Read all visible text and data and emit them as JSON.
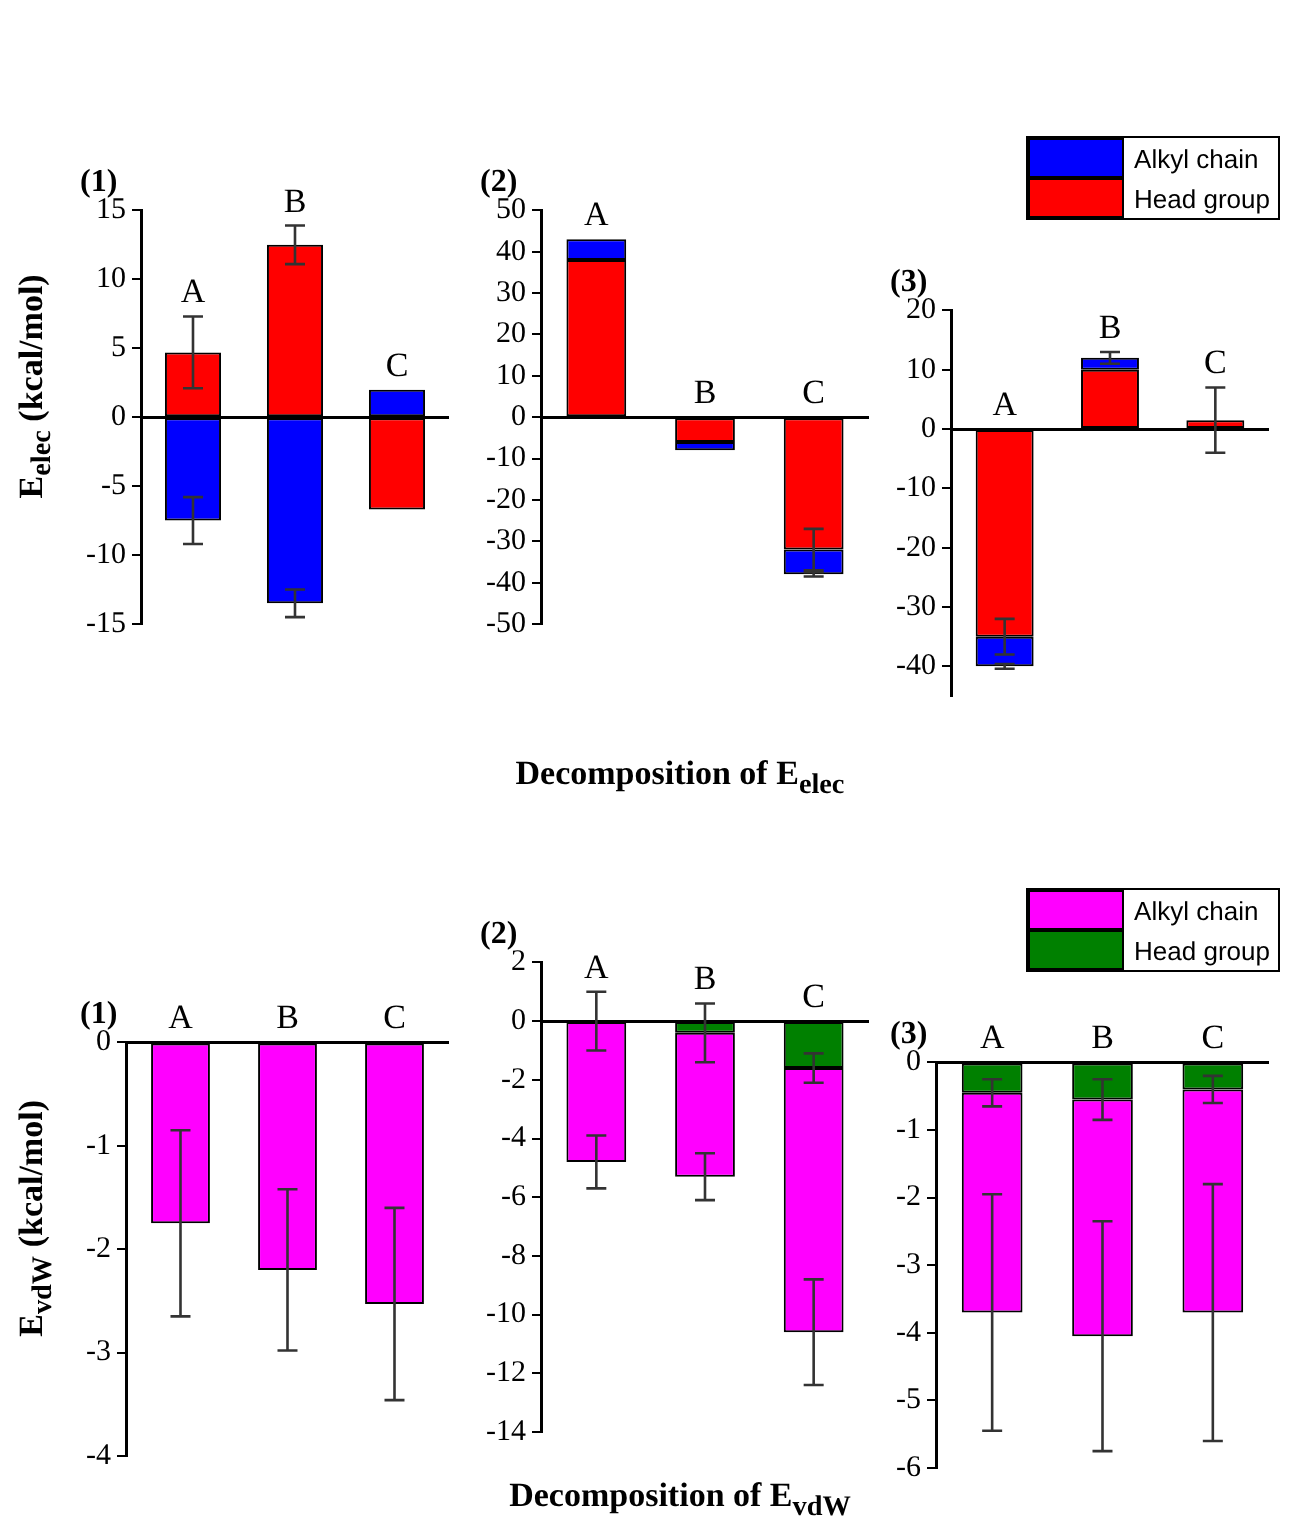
{
  "chart_data": [
    {
      "type": "bar",
      "title": "(1)",
      "ylabel": "E$_{elec}$ (kcal/mol)",
      "categories": [
        "A",
        "B",
        "C"
      ],
      "stacked": true,
      "ylim": [
        -15,
        15
      ],
      "yticks": [
        -15,
        -10,
        -5,
        0,
        5,
        10,
        15
      ],
      "series": [
        {
          "color": "#ff0000",
          "values": [
            4.7,
            12.5,
            -6.7
          ],
          "errors": [
            2.6,
            1.4,
            null
          ]
        },
        {
          "color": "#0000ff",
          "values": [
            -7.5,
            -13.5,
            2.0
          ],
          "errors": [
            1.7,
            1.0,
            null
          ]
        }
      ]
    },
    {
      "type": "bar",
      "title": "(2)",
      "xlabel": "Decomposition of E$_{elec}$",
      "categories": [
        "A",
        "B",
        "C"
      ],
      "stacked": true,
      "ylim": [
        -50,
        50
      ],
      "yticks": [
        -50,
        -40,
        -30,
        -20,
        -10,
        0,
        10,
        20,
        30,
        40,
        50
      ],
      "series": [
        {
          "color": "#ff0000",
          "values": [
            38,
            -6,
            -32
          ],
          "errors": [
            null,
            null,
            5
          ]
        },
        {
          "color": "#0000ff",
          "values": [
            5,
            -2,
            -6
          ],
          "errors": [
            null,
            null,
            0.5
          ]
        }
      ]
    },
    {
      "type": "bar",
      "title": "(3)",
      "legend": "top right",
      "categories": [
        "A",
        "B",
        "C"
      ],
      "stacked": true,
      "ylim": [
        -45,
        20
      ],
      "yticks": [
        -40,
        -30,
        -20,
        -10,
        0,
        10,
        20
      ],
      "series": [
        {
          "name": "Head group",
          "color": "#ff0000",
          "values": [
            -35,
            10,
            1.5
          ],
          "errors": [
            3,
            null,
            5.5
          ]
        },
        {
          "name": "Alkyl chain",
          "color": "#0000ff",
          "values": [
            -5,
            2,
            0
          ],
          "errors": [
            0.4,
            1,
            null
          ]
        }
      ]
    },
    {
      "type": "bar",
      "title": "(1)",
      "ylabel": "E$_{vdW}$ (kcal/mol)",
      "categories": [
        "A",
        "B",
        "C"
      ],
      "stacked": true,
      "ylim": [
        -4,
        0
      ],
      "yticks": [
        -4,
        -3,
        -2,
        -1,
        0
      ],
      "series": [
        {
          "color": "#ff00ff",
          "values": [
            -1.75,
            -2.2,
            -2.53
          ],
          "errors": [
            0.9,
            0.78,
            0.93
          ]
        }
      ]
    },
    {
      "type": "bar",
      "title": "(2)",
      "xlabel": "Decomposition of E$_{vdW}$",
      "categories": [
        "A",
        "B",
        "C"
      ],
      "stacked": true,
      "ylim": [
        -14,
        2
      ],
      "yticks": [
        -14,
        -12,
        -10,
        -8,
        -6,
        -4,
        -2,
        0,
        2
      ],
      "series": [
        {
          "color": "#008000",
          "values": [
            0,
            -0.4,
            -1.6
          ],
          "errors": [
            1,
            1,
            0.5
          ]
        },
        {
          "color": "#ff00ff",
          "values": [
            -4.8,
            -4.9,
            -9.0
          ],
          "errors": [
            0.9,
            0.8,
            1.8
          ]
        }
      ]
    },
    {
      "type": "bar",
      "title": "(3)",
      "legend": "top right",
      "categories": [
        "A",
        "B",
        "C"
      ],
      "stacked": true,
      "ylim": [
        -6,
        0
      ],
      "yticks": [
        -6,
        -5,
        -4,
        -3,
        -2,
        -1,
        0
      ],
      "series": [
        {
          "name": "Head group",
          "color": "#008000",
          "values": [
            -0.45,
            -0.55,
            -0.4
          ],
          "errors": [
            0.2,
            0.3,
            0.2
          ]
        },
        {
          "name": "Alkyl chain",
          "color": "#ff00ff",
          "values": [
            -3.25,
            -3.5,
            -3.3
          ],
          "errors": [
            1.75,
            1.7,
            1.9
          ]
        }
      ]
    }
  ]
}
